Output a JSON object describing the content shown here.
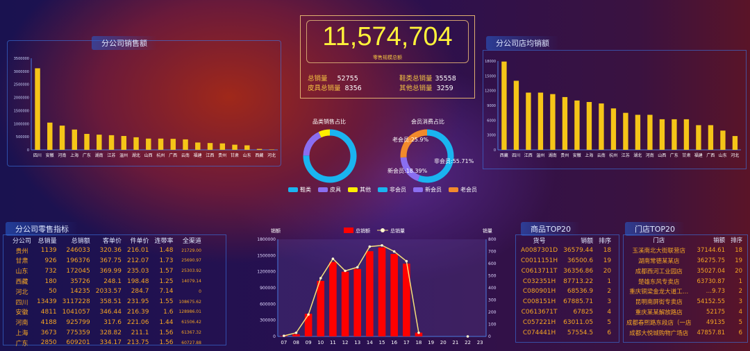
{
  "colors": {
    "bar": "#f5c518",
    "red": "#ff0000",
    "line": "#f7e07a",
    "cyan": "#1ab4f0",
    "purple": "#8a6ef0",
    "yellow": "#ffee00",
    "orange": "#f28a2c"
  },
  "kpi": {
    "total": "11,574,704",
    "subtitle": "零售规模总额",
    "stats": [
      {
        "label": "总销量",
        "value": "52755"
      },
      {
        "label": "鞋类总销量",
        "value": "35558"
      },
      {
        "label": "皮具总销量",
        "value": "8356"
      },
      {
        "label": "其他总销量",
        "value": "3259"
      }
    ]
  },
  "sales_panel": {
    "title": "分公司销售额"
  },
  "avg_panel": {
    "title": "分公司店均销额"
  },
  "retail_panel": {
    "title": "分公司零售指标",
    "columns": [
      "分公司",
      "总销量",
      "总销额",
      "客单价",
      "件单价",
      "连带率",
      "全渠道"
    ],
    "rows": [
      [
        "贵州",
        "1139",
        "246033",
        "320.36",
        "216.01",
        "1.48",
        "21729.00"
      ],
      [
        "甘肃",
        "926",
        "196376",
        "367.75",
        "212.07",
        "1.73",
        "25690.97"
      ],
      [
        "山东",
        "732",
        "172045",
        "369.99",
        "235.03",
        "1.57",
        "25303.92"
      ],
      [
        "西藏",
        "180",
        "35726",
        "248.1",
        "198.48",
        "1.25",
        "14079.14"
      ],
      [
        "河北",
        "50",
        "14235",
        "2033.57",
        "284.7",
        "7.14",
        "0"
      ],
      [
        "四川",
        "13439",
        "3117228",
        "358.51",
        "231.95",
        "1.55",
        "108675.62"
      ],
      [
        "安徽",
        "4811",
        "1041057",
        "346.44",
        "216.39",
        "1.6",
        "128986.01"
      ],
      [
        "河南",
        "4188",
        "925799",
        "317.6",
        "221.06",
        "1.44",
        "61506.42"
      ],
      [
        "上海",
        "3673",
        "775359",
        "328.82",
        "211.1",
        "1.56",
        "61367.32"
      ],
      [
        "广东",
        "2850",
        "609201",
        "334.17",
        "213.75",
        "1.56",
        "60727.88"
      ]
    ]
  },
  "product_panel": {
    "title": "商品TOP20",
    "columns": [
      "货号",
      "销额",
      "排序"
    ],
    "rows": [
      [
        "A0087301D",
        "36579.44",
        "18"
      ],
      [
        "C0011151H",
        "36500.6",
        "19"
      ],
      [
        "C0613711T",
        "36356.86",
        "20"
      ],
      [
        "C032351H",
        "87713.22",
        "1"
      ],
      [
        "C080901H",
        "68536.9",
        "2"
      ],
      [
        "C008151H",
        "67885.71",
        "3"
      ],
      [
        "C0613671T",
        "67825",
        "4"
      ],
      [
        "C057221H",
        "63011.05",
        "5"
      ],
      [
        "C074441H",
        "57554.5",
        "6"
      ]
    ]
  },
  "store_panel": {
    "title": "门店TOP20",
    "columns": [
      "门店",
      "销额",
      "排序"
    ],
    "rows": [
      [
        "玉溪南北大街联营店",
        "37144.61",
        "18"
      ],
      [
        "湖南常德某某店",
        "36275.75",
        "19"
      ],
      [
        "成都西河工业园店",
        "35027.04",
        "20"
      ],
      [
        "楚雄东风专卖店",
        "63730.87",
        "1"
      ],
      [
        "重庆铜梁金龙大道工…",
        "…9.73",
        "2"
      ],
      [
        "昆明南屏街专卖店",
        "54152.55",
        "3"
      ],
      [
        "重庆某某解放路店",
        "52175",
        "4"
      ],
      [
        "成都春熙路东段店（一店",
        "49135",
        "5"
      ],
      [
        "成都大悦城购物广场店",
        "47857.81",
        "6"
      ]
    ]
  },
  "donuts": [
    {
      "title": "品类销售占比",
      "slices": [
        {
          "name": "鞋类",
          "value": 35558,
          "color": "#1ab4f0"
        },
        {
          "name": "皮具",
          "value": 8356,
          "color": "#8a6ef0"
        },
        {
          "name": "其他",
          "value": 3259,
          "color": "#ffee00"
        }
      ]
    },
    {
      "title": "会员消费占比",
      "slices": [
        {
          "name": "非会员",
          "value": 55.71,
          "color": "#1ab4f0",
          "label": "非会员:55.71%"
        },
        {
          "name": "新会员",
          "value": 18.39,
          "color": "#8a6ef0",
          "label": "新会员:18.39%"
        },
        {
          "name": "老会员",
          "value": 25.9,
          "color": "#f28a2c",
          "label": "老会员:25.9%"
        }
      ]
    }
  ],
  "chart_data": [
    {
      "type": "bar",
      "title": "分公司销售额",
      "categories": [
        "四川",
        "安徽",
        "河南",
        "上海",
        "广东",
        "湖南",
        "江苏",
        "温州",
        "湖北",
        "山西",
        "杭州",
        "广西",
        "云南",
        "福建",
        "江西",
        "贵州",
        "甘肃",
        "山东",
        "西藏",
        "河北"
      ],
      "values": [
        3117228,
        1041057,
        925799,
        775359,
        609201,
        580000,
        560000,
        530000,
        480000,
        430000,
        430000,
        420000,
        400000,
        280000,
        260000,
        246033,
        196376,
        172045,
        35726,
        14235
      ],
      "ylim": [
        0,
        3500000
      ],
      "yticks": [
        0,
        500000,
        1000000,
        1500000,
        2000000,
        2500000,
        3000000,
        3500000
      ]
    },
    {
      "type": "bar",
      "title": "分公司店均销额",
      "categories": [
        "西藏",
        "四川",
        "江西",
        "温州",
        "湖南",
        "贵州",
        "安徽",
        "上海",
        "云南",
        "杭州",
        "江苏",
        "湖北",
        "河南",
        "山西",
        "广东",
        "甘肃",
        "福建",
        "广西",
        "山东",
        "河北"
      ],
      "values": [
        17900,
        14000,
        11600,
        11600,
        11300,
        10700,
        10000,
        9700,
        9400,
        8400,
        7500,
        7100,
        7100,
        6200,
        6200,
        6200,
        5000,
        5000,
        3900,
        2800
      ],
      "ylim": [
        0,
        18000
      ],
      "yticks": [
        0,
        3000,
        6000,
        9000,
        12000,
        15000,
        18000
      ]
    },
    {
      "type": "bar+line",
      "categories": [
        "07",
        "08",
        "09",
        "10",
        "11",
        "12",
        "13",
        "14",
        "15",
        "16",
        "17",
        "18",
        "19",
        "20",
        "21",
        "22",
        "23"
      ],
      "series": [
        {
          "name": "总销额",
          "type": "bar",
          "axis": "left",
          "values": [
            10000,
            40000,
            420000,
            1030000,
            1380000,
            1200000,
            1250000,
            1580000,
            1650000,
            1530000,
            1350000,
            70000,
            0,
            0,
            0,
            0,
            0
          ]
        },
        {
          "name": "总销量",
          "type": "line",
          "axis": "right",
          "values": [
            50,
            300,
            1800,
            4800,
            6400,
            5400,
            5700,
            7400,
            7500,
            7000,
            6200,
            300,
            null,
            null,
            null,
            0,
            null
          ]
        }
      ],
      "ylabel": "销额",
      "y2label": "销量",
      "ylim": [
        0,
        1800000
      ],
      "y2lim": [
        0,
        8000
      ],
      "yticks": [
        0,
        300000,
        600000,
        900000,
        1200000,
        1500000,
        1800000
      ],
      "y2ticks": [
        0,
        1000,
        2000,
        3000,
        4000,
        5000,
        6000,
        7000,
        8000
      ],
      "legend": "top"
    }
  ]
}
